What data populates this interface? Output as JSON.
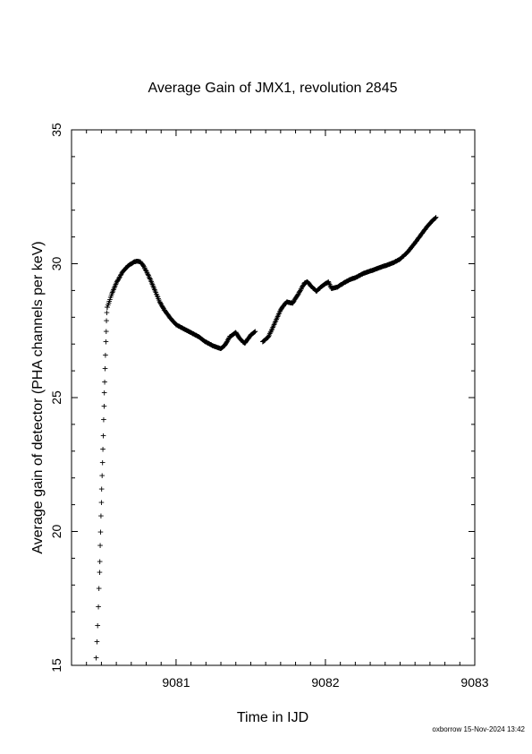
{
  "chart_data": {
    "type": "scatter",
    "title": "Average Gain of JMX1, revolution 2845",
    "xlabel": "Time in IJD",
    "ylabel": "Average gain of detector (PHA channels per keV)",
    "xlim": [
      9080.3,
      9083.0
    ],
    "ylim": [
      15,
      35
    ],
    "xticks": [
      9081,
      9082,
      9083
    ],
    "yticks": [
      15,
      20,
      25,
      30,
      35
    ],
    "grid": false,
    "marker": "+",
    "sparse_series": {
      "x": [
        9080.465,
        9080.47,
        9080.475,
        9080.48,
        9080.484,
        9080.488,
        9080.49,
        9080.492,
        9080.494,
        9080.497,
        9080.5,
        9080.502,
        9080.505,
        9080.508,
        9080.51,
        9080.513,
        9080.515,
        9080.518,
        9080.52,
        9080.522,
        9080.525,
        9080.527,
        9080.53,
        9080.532,
        9080.534,
        9080.536,
        9080.538
      ],
      "y": [
        15.3,
        15.9,
        16.5,
        17.2,
        17.9,
        18.5,
        18.9,
        19.5,
        20.0,
        20.6,
        21.1,
        21.6,
        22.1,
        22.6,
        23.1,
        23.6,
        24.2,
        24.7,
        25.2,
        25.6,
        26.1,
        26.6,
        27.1,
        27.5,
        27.9,
        28.2,
        28.4
      ]
    },
    "dense_series_1": {
      "x": [
        9080.54,
        9080.57,
        9080.6,
        9080.64,
        9080.68,
        9080.72,
        9080.74,
        9080.76,
        9080.78,
        9080.8,
        9080.83,
        9080.86,
        9080.89,
        9080.92,
        9080.96,
        9081.0,
        9081.05,
        9081.1,
        9081.15,
        9081.2,
        9081.25,
        9081.3,
        9081.33,
        9081.36,
        9081.4,
        9081.43,
        9081.46,
        9081.5,
        9081.53
      ],
      "y": [
        28.4,
        28.9,
        29.3,
        29.7,
        29.95,
        30.1,
        30.12,
        30.1,
        29.95,
        29.75,
        29.4,
        29.0,
        28.6,
        28.3,
        28.0,
        27.75,
        27.6,
        27.45,
        27.3,
        27.1,
        26.95,
        26.85,
        27.0,
        27.3,
        27.45,
        27.2,
        27.05,
        27.35,
        27.5
      ]
    },
    "dense_series_2": {
      "x": [
        9081.58,
        9081.62,
        9081.66,
        9081.7,
        9081.74,
        9081.78,
        9081.82,
        9081.86,
        9081.88,
        9081.9,
        9081.94,
        9081.98,
        9082.02,
        9082.04,
        9082.08,
        9082.12,
        9082.17,
        9082.2,
        9082.25,
        9082.3,
        9082.35,
        9082.4,
        9082.45,
        9082.5,
        9082.55,
        9082.6,
        9082.64,
        9082.68,
        9082.72,
        9082.74
      ],
      "y": [
        27.1,
        27.3,
        27.8,
        28.3,
        28.6,
        28.55,
        28.9,
        29.3,
        29.35,
        29.2,
        29.0,
        29.2,
        29.35,
        29.1,
        29.15,
        29.3,
        29.45,
        29.5,
        29.65,
        29.75,
        29.85,
        29.95,
        30.05,
        30.2,
        30.45,
        30.8,
        31.1,
        31.4,
        31.65,
        31.75
      ]
    }
  },
  "footer": {
    "text": "oxborrow 15-Nov-2024 13:42"
  }
}
